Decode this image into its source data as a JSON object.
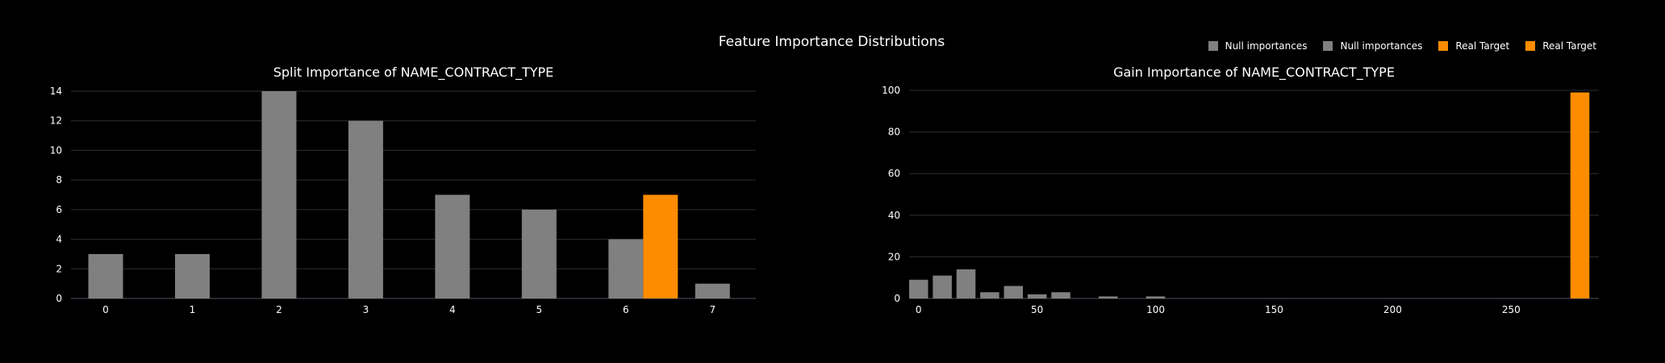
{
  "main_title": "Feature Importance Distributions",
  "colors": {
    "null": "#808080",
    "real": "#ff8c00",
    "grid": "#2e2e38",
    "axis": "#505060"
  },
  "legend": [
    {
      "label": "Null importances",
      "color": "#808080"
    },
    {
      "label": "Null importances",
      "color": "#808080"
    },
    {
      "label": "Real Target",
      "color": "#ff8c00"
    },
    {
      "label": "Real Target",
      "color": "#ff8c00"
    }
  ],
  "chart_data": [
    {
      "type": "bar",
      "title": "Split Importance of NAME_CONTRACT_TYPE",
      "xlabel": "",
      "ylabel": "",
      "xlim": [
        -0.4,
        7.5
      ],
      "ylim": [
        0,
        14
      ],
      "xticks": [
        0,
        1,
        2,
        3,
        4,
        5,
        6,
        7
      ],
      "yticks": [
        0,
        2,
        4,
        6,
        8,
        10,
        12,
        14
      ],
      "grid": true,
      "series": [
        {
          "name": "Null importances",
          "color": "#808080",
          "bin_width": 0.4,
          "x": [
            0,
            1,
            2,
            3,
            4,
            5,
            6,
            7
          ],
          "values": [
            3,
            3,
            14,
            12,
            7,
            6,
            4,
            1
          ]
        },
        {
          "name": "Real Target",
          "color": "#ff8c00",
          "bin_width": 0.4,
          "x": [
            6.4
          ],
          "values": [
            7
          ]
        }
      ]
    },
    {
      "type": "bar",
      "title": "Gain Importance of NAME_CONTRACT_TYPE",
      "xlabel": "",
      "ylabel": "",
      "xlim": [
        -4,
        287
      ],
      "ylim": [
        0,
        100
      ],
      "xticks": [
        0,
        50,
        100,
        150,
        200,
        250
      ],
      "yticks": [
        0,
        20,
        40,
        60,
        80,
        100
      ],
      "grid": true,
      "series": [
        {
          "name": "Null importances",
          "color": "#808080",
          "bin_width": 8,
          "x": [
            0,
            10,
            20,
            30,
            40,
            50,
            60,
            70,
            80,
            90,
            100
          ],
          "values": [
            9,
            11,
            14,
            3,
            6,
            2,
            3,
            0,
            1,
            0,
            1
          ]
        },
        {
          "name": "Real Target",
          "color": "#ff8c00",
          "bin_width": 8,
          "x": [
            279
          ],
          "values": [
            99
          ]
        }
      ]
    }
  ]
}
